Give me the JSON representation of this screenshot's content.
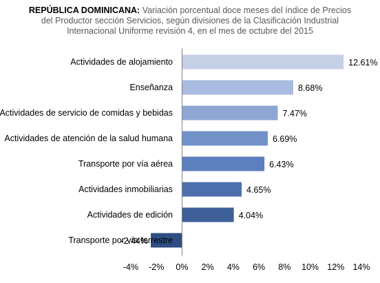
{
  "title_bold": "REPÚBLICA DOMINICANA:",
  "title_rest": " Variación porcentual doce meses del índice de Precios del Productor sección Servicios, según divisiones de la Clasificación Industrial Internacional Uniforme revisión 4, en el mes de octubre del 2015",
  "chart_data": {
    "type": "bar",
    "orientation": "horizontal",
    "categories": [
      "Actividades de alojamiento",
      "Enseñanza",
      "Actividades de servicio de comidas y bebidas",
      "Actividades de atención de la salud humana",
      "Transporte por vía aérea",
      "Actividades inmobiliarias",
      "Actividades de edición",
      "Transporte por vía terrestre"
    ],
    "values": [
      12.61,
      8.68,
      7.47,
      6.69,
      6.43,
      4.65,
      4.04,
      -2.44
    ],
    "value_labels": [
      "12.61%",
      "8.68%",
      "7.47%",
      "6.69%",
      "6.43%",
      "4.65%",
      "4.04%",
      "-2.44%"
    ],
    "xlim": [
      -4,
      14
    ],
    "xticks": [
      -4,
      -2,
      0,
      2,
      4,
      6,
      8,
      10,
      12,
      14
    ],
    "xtick_labels": [
      "-4%",
      "-2%",
      "0%",
      "2%",
      "4%",
      "6%",
      "8%",
      "10%",
      "12%",
      "14%"
    ],
    "bar_colors": [
      "#c5cfe6",
      "#a9bbde",
      "#8ea6d4",
      "#7392c9",
      "#5c7fbe",
      "#4d70ad",
      "#3f5f99",
      "#2f4d80"
    ],
    "grid": false,
    "legend": "none"
  }
}
